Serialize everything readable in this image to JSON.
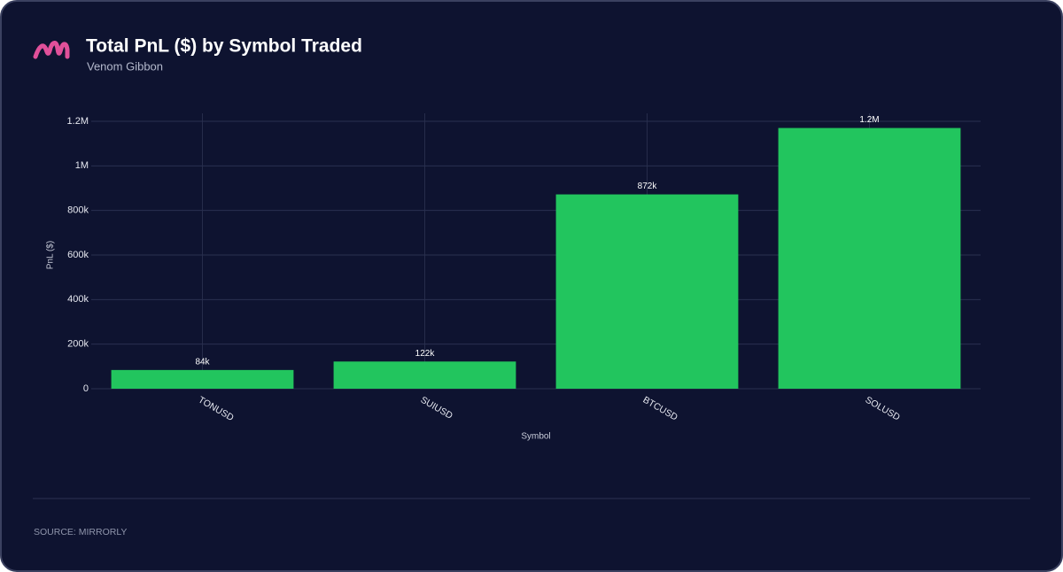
{
  "chart_data": {
    "type": "bar",
    "title": "Total PnL ($) by Symbol Traded",
    "subtitle": "Venom Gibbon",
    "source": "SOURCE: MIRRORLY",
    "x_label": "Symbol",
    "y_label": "PnL ($)",
    "categories": [
      "TONUSD",
      "SUIUSD",
      "BTCUSD",
      "SOLUSD"
    ],
    "values": [
      84000,
      122000,
      872000,
      1170000
    ],
    "value_labels": [
      "84k",
      "122k",
      "872k",
      "1.2M"
    ],
    "color": "#22c55e",
    "ylim": [
      0,
      1200000
    ],
    "yticks": [
      0,
      {
        "value": 200000,
        "label": "200k"
      },
      {
        "value": 400000,
        "label": "400k"
      },
      {
        "value": 600000,
        "label": "600k"
      },
      {
        "value": 800000,
        "label": "800k"
      },
      {
        "value": 1000000,
        "label": "1M"
      },
      {
        "value": 1200000,
        "label": "1.2M"
      }
    ],
    "grid": true
  }
}
